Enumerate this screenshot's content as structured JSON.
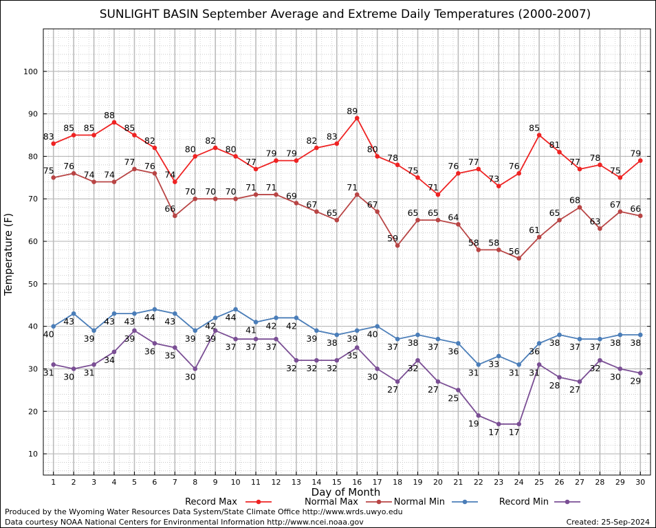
{
  "chart_data": {
    "type": "line",
    "title": "SUNLIGHT BASIN September Average and Extreme Daily Temperatures (2000-2007)",
    "xlabel": "Day of Month",
    "ylabel": "Temperature (F)",
    "x": [
      1,
      2,
      3,
      4,
      5,
      6,
      7,
      8,
      9,
      10,
      11,
      12,
      13,
      14,
      15,
      16,
      17,
      18,
      19,
      20,
      21,
      22,
      23,
      24,
      25,
      26,
      27,
      28,
      29,
      30
    ],
    "xlim": [
      0.5,
      30.5
    ],
    "ylim": [
      5,
      110
    ],
    "yticks": [
      10,
      20,
      30,
      40,
      50,
      60,
      70,
      80,
      90,
      100
    ],
    "grid": true,
    "legend_position": "bottom",
    "series": [
      {
        "name": "Record Max",
        "color": "#ee2222",
        "values": [
          83,
          85,
          85,
          88,
          85,
          82,
          74,
          80,
          82,
          80,
          77,
          79,
          79,
          82,
          83,
          89,
          80,
          78,
          75,
          71,
          76,
          77,
          73,
          76,
          85,
          81,
          77,
          78,
          75,
          79
        ]
      },
      {
        "name": "Normal Max",
        "color": "#b84444",
        "values": [
          75,
          76,
          74,
          74,
          77,
          76,
          66,
          70,
          70,
          70,
          71,
          71,
          69,
          67,
          65,
          71,
          67,
          59,
          65,
          65,
          64,
          58,
          58,
          56,
          61,
          65,
          68,
          63,
          67,
          66
        ]
      },
      {
        "name": "Normal Min",
        "color": "#4a7db8",
        "values": [
          40,
          43,
          39,
          43,
          43,
          44,
          43,
          39,
          42,
          44,
          41,
          42,
          42,
          39,
          38,
          39,
          40,
          37,
          38,
          37,
          36,
          31,
          33,
          31,
          36,
          38,
          37,
          37,
          38,
          38
        ]
      },
      {
        "name": "Record Min",
        "color": "#7a4e94",
        "values": [
          31,
          30,
          31,
          34,
          39,
          36,
          35,
          30,
          39,
          37,
          37,
          37,
          32,
          32,
          32,
          35,
          30,
          27,
          32,
          27,
          25,
          19,
          17,
          17,
          31,
          28,
          27,
          32,
          30,
          29
        ]
      }
    ]
  },
  "footer": {
    "produced_by": "Produced by the Wyoming Water Resources Data System/State Climate Office http://www.wrds.uwyo.edu",
    "courtesy": "Data courtesy NOAA National Centers for Environmental Information http://www.ncei.noaa.gov",
    "created": "Created:  25-Sep-2024"
  }
}
